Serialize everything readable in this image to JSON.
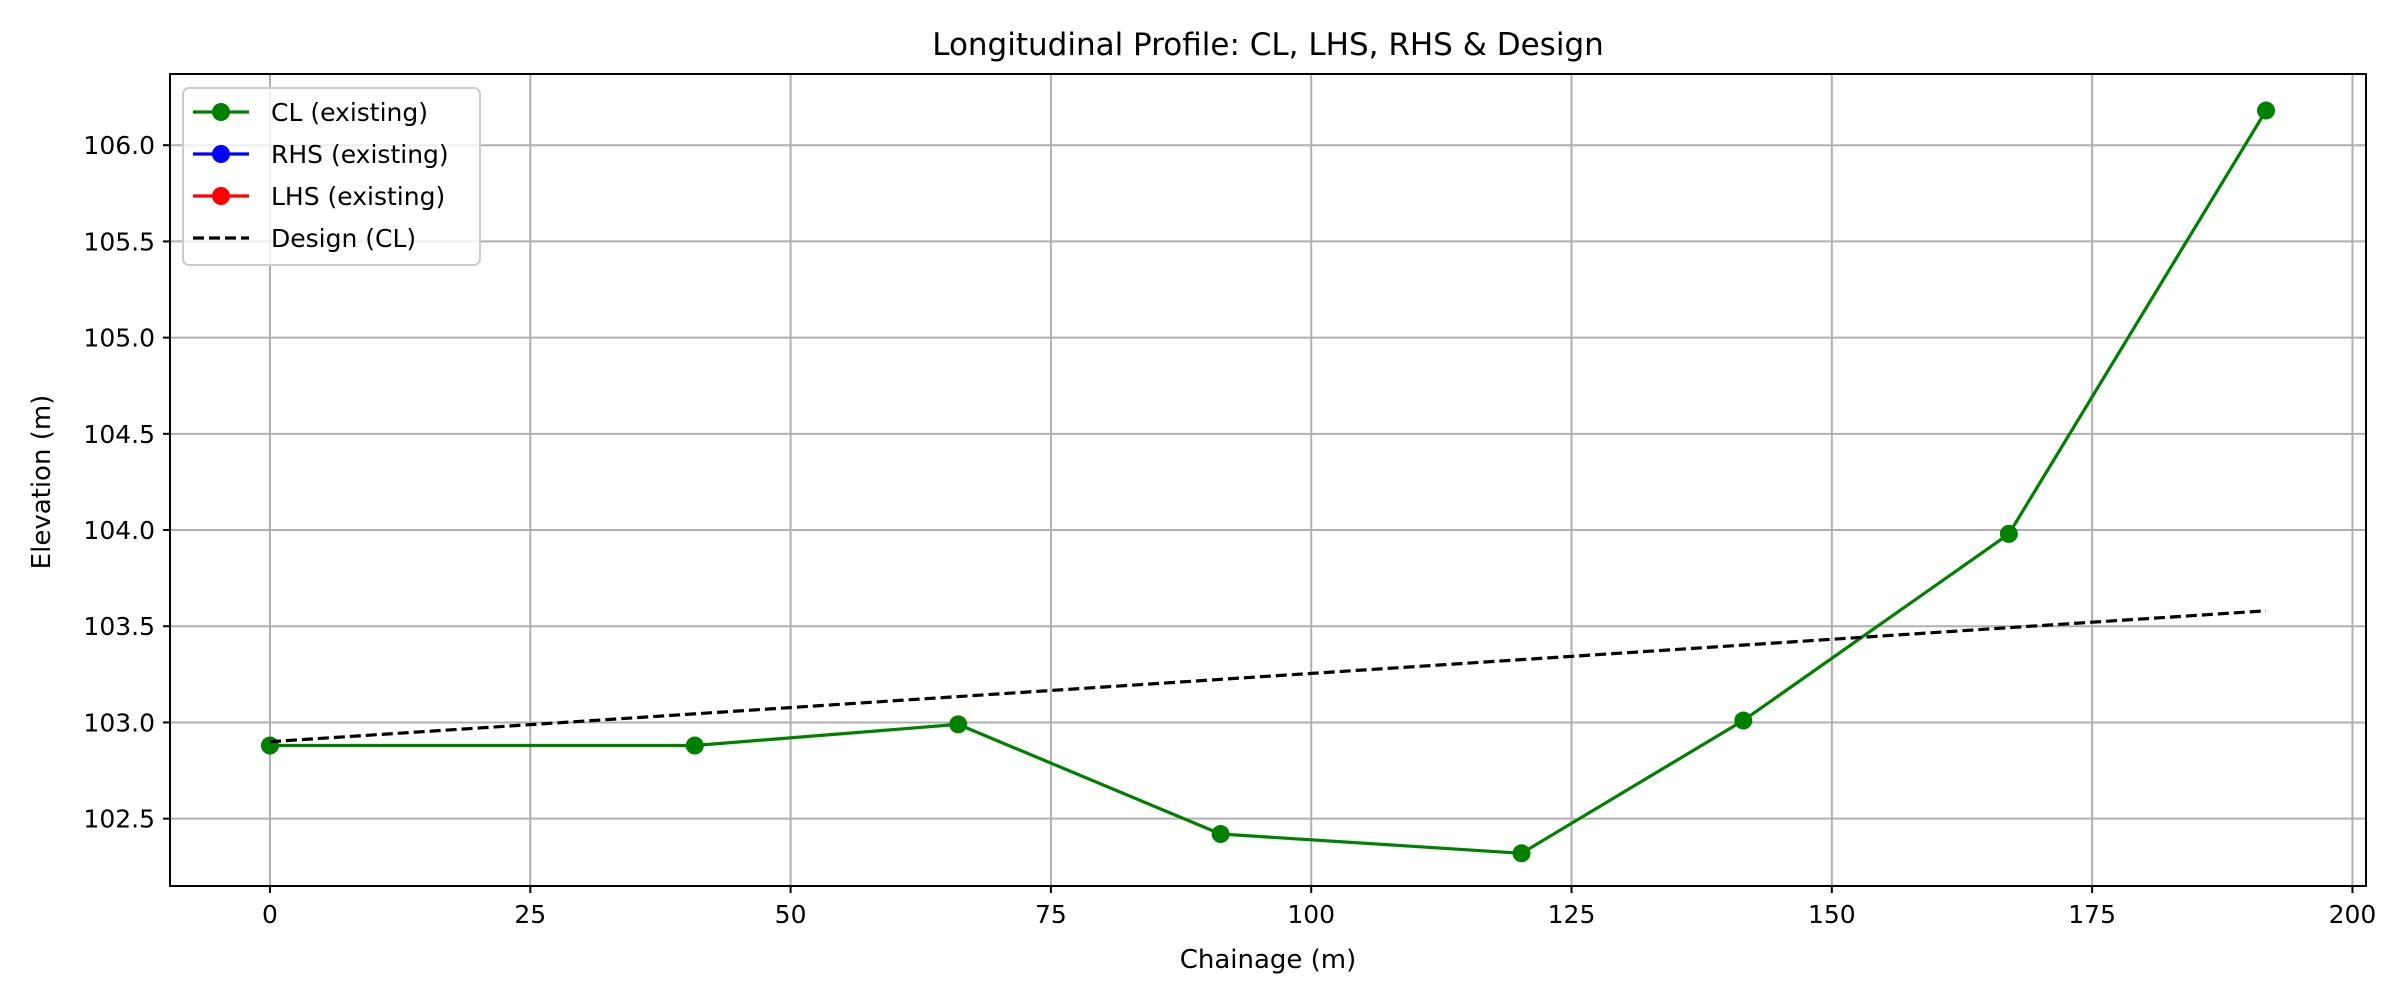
{
  "chart_data": {
    "type": "line",
    "title": "Longitudinal Profile: CL, LHS, RHS & Design",
    "xlabel": "Chainage (m)",
    "ylabel": "Elevation (m)",
    "xlim": [
      -9.6,
      201.3
    ],
    "ylim": [
      102.15,
      106.37
    ],
    "x_ticks": [
      0,
      25,
      50,
      75,
      100,
      125,
      150,
      175,
      200
    ],
    "x_tick_labels": [
      "0",
      "25",
      "50",
      "75",
      "100",
      "125",
      "150",
      "175",
      "200"
    ],
    "y_ticks": [
      102.5,
      103.0,
      103.5,
      104.0,
      104.5,
      105.0,
      105.5,
      106.0
    ],
    "y_tick_labels": [
      "102.5",
      "103.0",
      "103.5",
      "104.0",
      "104.5",
      "105.0",
      "105.5",
      "106.0"
    ],
    "grid": true,
    "legend_position": "top-left",
    "series": [
      {
        "name": "CL (existing)",
        "color": "#008000",
        "style": "solid",
        "marker": "circle",
        "x": [
          0,
          40.8,
          66.1,
          91.3,
          120.2,
          141.5,
          167.0,
          191.7
        ],
        "y": [
          102.88,
          102.88,
          102.99,
          102.42,
          102.32,
          103.01,
          103.98,
          106.18
        ]
      },
      {
        "name": "RHS (existing)",
        "color": "#0000ff",
        "style": "solid",
        "marker": "circle",
        "x": [],
        "y": []
      },
      {
        "name": "LHS (existing)",
        "color": "#ff0000",
        "style": "solid",
        "marker": "circle",
        "x": [],
        "y": []
      },
      {
        "name": "Design (CL)",
        "color": "#000000",
        "style": "dashed",
        "marker": "none",
        "x": [
          0,
          191.7
        ],
        "y": [
          102.9,
          103.58
        ]
      }
    ]
  }
}
